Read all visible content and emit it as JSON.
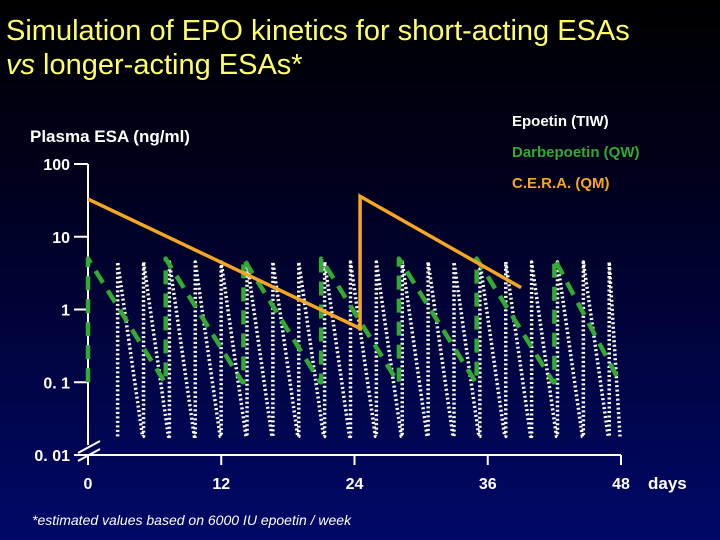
{
  "slide": {
    "title_line1": "Simulation of EPO kinetics for short-acting ESAs",
    "title_vs": "vs",
    "title_rest": " longer-acting ESAs*",
    "footnote": "*estimated values based on 6000 IU epoetin / week"
  },
  "chart_data": {
    "type": "line",
    "ylabel": "Plasma ESA (ng/ml)",
    "xunit": "days",
    "yscale": "log",
    "ylim": [
      0.01,
      100
    ],
    "yticks": [
      100,
      10,
      1,
      0.1,
      0.01
    ],
    "ytick_labels": [
      "100",
      "10",
      "1",
      "0. 1",
      "0. 01"
    ],
    "xlim": [
      0,
      48
    ],
    "xticks": [
      0,
      12,
      24,
      36,
      48
    ],
    "xtick_labels": [
      "0",
      "12",
      "24",
      "36",
      "48"
    ],
    "axis_break": true,
    "grid": false,
    "legend_position": "top-right",
    "series": [
      {
        "name": "Epoetin (TIW)",
        "color": "#ffffff",
        "style": "dotted",
        "dose_interval_days": 2.33,
        "first_dose_day": 2.67,
        "peak": 4.5,
        "trough": 0.018
      },
      {
        "name": "Darbepoetin (QW)",
        "color": "#33aa33",
        "style": "dashed",
        "dose_interval_days": 7,
        "first_dose_day": 0,
        "peak": 5,
        "trough": 0.1
      },
      {
        "name": "C.E.R.A. (QM)",
        "color": "#f5a623",
        "style": "solid",
        "points": [
          [
            0,
            33
          ],
          [
            24.5,
            0.55
          ],
          [
            24.5,
            36
          ],
          [
            39,
            2
          ]
        ]
      }
    ]
  }
}
